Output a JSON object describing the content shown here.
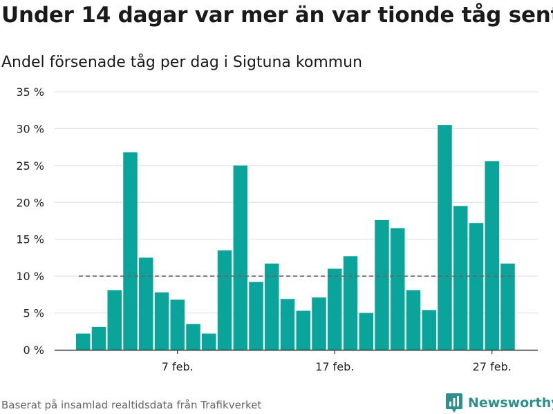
{
  "title": "Under 14 dagar var mer än var tionde tåg sent",
  "subtitle": "Andel försenade tåg per dag i Sigtuna kommun",
  "source": "Baserat på insamlad realtidsdata från Trafikverket",
  "brand": {
    "name": "Newsworthy"
  },
  "colors": {
    "bar": "#0ba49a",
    "grid": "#dedede",
    "axis": "#333333",
    "reference_line": "#666666",
    "brand": "#2f8f8f"
  },
  "chart_data": {
    "type": "bar",
    "x": [
      "1 feb.",
      "2 feb.",
      "3 feb.",
      "4 feb.",
      "5 feb.",
      "6 feb.",
      "7 feb.",
      "8 feb.",
      "9 feb.",
      "10 feb.",
      "11 feb.",
      "12 feb.",
      "13 feb.",
      "14 feb.",
      "15 feb.",
      "16 feb.",
      "17 feb.",
      "18 feb.",
      "19 feb.",
      "20 feb.",
      "21 feb.",
      "22 feb.",
      "23 feb.",
      "24 feb.",
      "25 feb.",
      "26 feb.",
      "27 feb.",
      "28 feb."
    ],
    "values": [
      2.2,
      3.1,
      8.1,
      26.8,
      12.5,
      7.8,
      6.8,
      3.5,
      2.2,
      13.5,
      25.0,
      9.2,
      11.7,
      6.9,
      5.3,
      7.1,
      11.0,
      12.7,
      5.0,
      17.6,
      16.5,
      8.1,
      5.4,
      30.5,
      19.5,
      17.2,
      25.6,
      11.7
    ],
    "unit": "%",
    "reference_value": 10,
    "ylim": [
      0,
      35
    ],
    "y_ticks": [
      0,
      5,
      10,
      15,
      20,
      25,
      30,
      35
    ],
    "y_tick_labels": [
      "0 %",
      "5 %",
      "10 %",
      "15 %",
      "20 %",
      "25 %",
      "30 %",
      "35 %"
    ],
    "x_ticks": [
      {
        "label": "7 feb.",
        "index": 6
      },
      {
        "label": "17 feb.",
        "index": 16
      },
      {
        "label": "27 feb.",
        "index": 26
      }
    ],
    "grid": true,
    "xlabel": "",
    "ylabel": ""
  }
}
